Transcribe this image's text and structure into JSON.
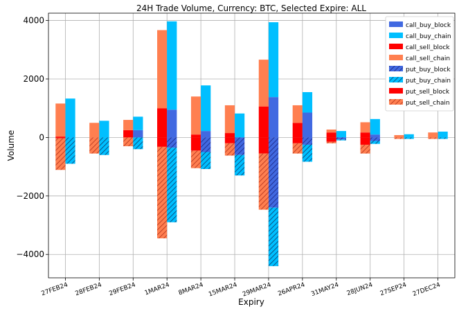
{
  "chart_data": {
    "type": "bar",
    "stacked": true,
    "title": "24H Trade Volume, Currency: BTC, Selected Expire: ALL",
    "xlabel": "Expiry",
    "ylabel": "Volume",
    "ylim": [
      -4800,
      4250
    ],
    "yticks": [
      -4000,
      -2000,
      0,
      2000,
      4000
    ],
    "yticklabels": [
      "−4000",
      "−2000",
      "0",
      "2000",
      "4000"
    ],
    "grid": true,
    "legend_position": "top-right",
    "categories": [
      "27FEB24",
      "28FEB24",
      "29FEB24",
      "1MAR24",
      "8MAR24",
      "15MAR24",
      "29MAR24",
      "26APR24",
      "31MAY24",
      "28JUN24",
      "27SEP24",
      "27DEC24"
    ],
    "series": [
      {
        "name": "call_buy_block",
        "group": "buy",
        "sign": "positive",
        "color": "#4169e1",
        "hatch": false,
        "values": [
          0,
          0,
          250,
          950,
          220,
          0,
          1380,
          850,
          0,
          100,
          0,
          0
        ]
      },
      {
        "name": "call_buy_chain",
        "group": "buy",
        "sign": "positive",
        "color": "#00bfff",
        "hatch": false,
        "values": [
          1330,
          570,
          460,
          3020,
          1560,
          820,
          2560,
          700,
          220,
          530,
          110,
          200
        ]
      },
      {
        "name": "call_sell_block",
        "group": "sell",
        "sign": "positive",
        "color": "#ff0000",
        "hatch": false,
        "values": [
          30,
          0,
          250,
          1000,
          100,
          150,
          1060,
          500,
          170,
          170,
          0,
          0
        ]
      },
      {
        "name": "call_sell_chain",
        "group": "sell",
        "sign": "positive",
        "color": "#ff7f50",
        "hatch": false,
        "values": [
          1130,
          500,
          350,
          2670,
          1300,
          950,
          1600,
          600,
          100,
          350,
          80,
          170
        ]
      },
      {
        "name": "put_buy_block",
        "group": "buy",
        "sign": "negative",
        "color": "#4169e1",
        "hatch": true,
        "values": [
          0,
          0,
          0,
          -350,
          -500,
          -600,
          -2400,
          -250,
          -70,
          -120,
          0,
          0
        ]
      },
      {
        "name": "put_buy_chain",
        "group": "buy",
        "sign": "negative",
        "color": "#00bfff",
        "hatch": true,
        "values": [
          -900,
          -600,
          -400,
          -2550,
          -580,
          -700,
          -2000,
          -580,
          -30,
          -100,
          -50,
          -50
        ]
      },
      {
        "name": "put_sell_block",
        "group": "sell",
        "sign": "negative",
        "color": "#ff0000",
        "hatch": false,
        "values": [
          -30,
          0,
          0,
          -320,
          -450,
          -200,
          -550,
          -200,
          -150,
          -250,
          0,
          0
        ]
      },
      {
        "name": "put_sell_chain",
        "group": "sell",
        "sign": "negative",
        "color": "#ff7f50",
        "hatch": true,
        "values": [
          -1080,
          -550,
          -300,
          -3130,
          -600,
          -420,
          -1920,
          -350,
          -50,
          -300,
          -50,
          -50
        ]
      }
    ]
  }
}
